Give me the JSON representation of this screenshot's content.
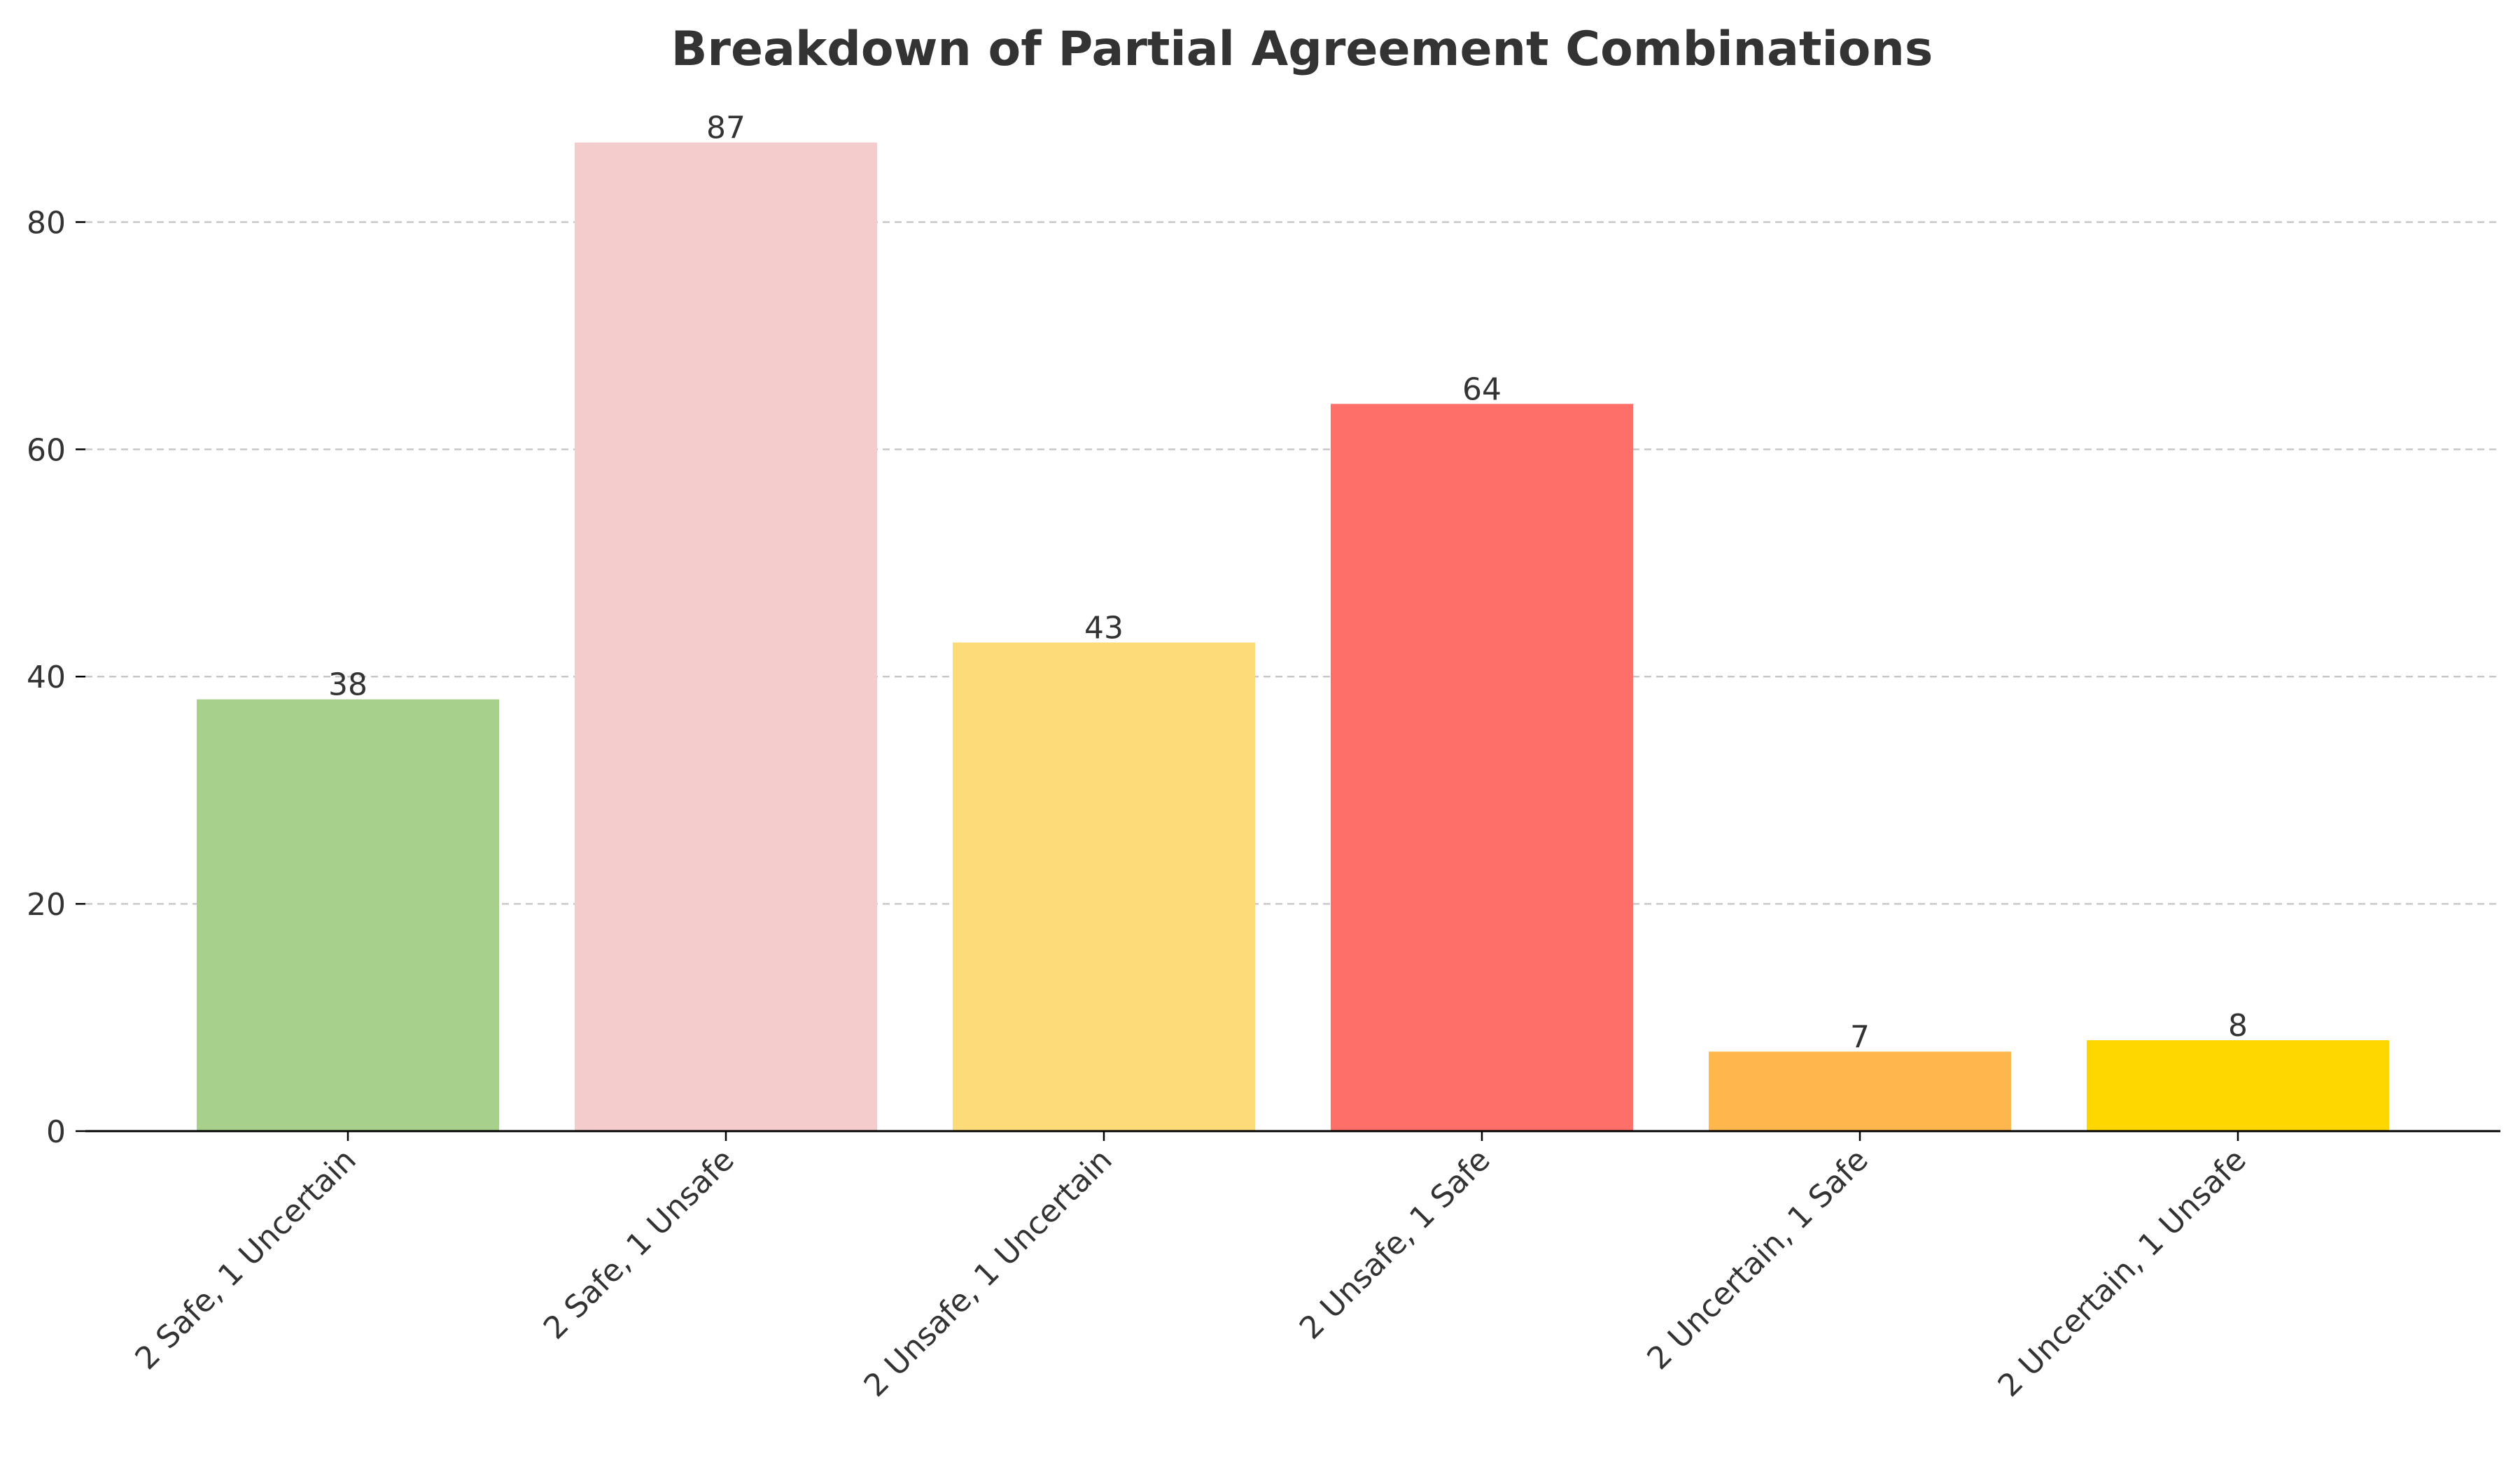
{
  "chart_data": {
    "type": "bar",
    "title": "Breakdown of Partial Agreement Combinations",
    "xlabel": "",
    "ylabel": "",
    "categories": [
      "2 Safe, 1 Uncertain",
      "2 Safe, 1 Unsafe",
      "2 Unsafe, 1 Uncertain",
      "2 Unsafe, 1 Safe",
      "2 Uncertain, 1 Safe",
      "2 Uncertain, 1 Unsafe"
    ],
    "values": [
      38,
      87,
      43,
      64,
      7,
      8
    ],
    "colors": [
      "#a8d08d",
      "#f4cccc",
      "#fddb78",
      "#ff6f69",
      "#ffb74d",
      "#ffd700"
    ],
    "ylim": [
      0,
      90
    ],
    "yticks": [
      0,
      20,
      40,
      60,
      80
    ],
    "grid": "y-dashed",
    "legend": "none",
    "value_labels": true
  }
}
